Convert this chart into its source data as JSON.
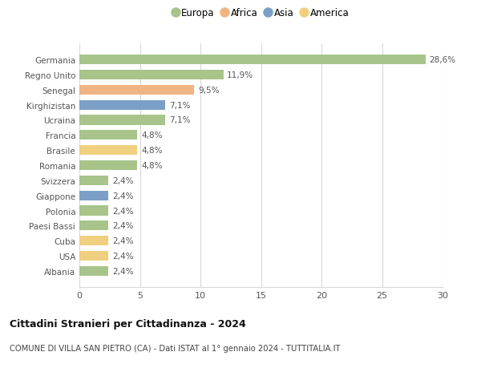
{
  "countries": [
    "Germania",
    "Regno Unito",
    "Senegal",
    "Kirghizistan",
    "Ucraina",
    "Francia",
    "Brasile",
    "Romania",
    "Svizzera",
    "Giappone",
    "Polonia",
    "Paesi Bassi",
    "Cuba",
    "USA",
    "Albania"
  ],
  "values": [
    28.6,
    11.9,
    9.5,
    7.1,
    7.1,
    4.8,
    4.8,
    4.8,
    2.4,
    2.4,
    2.4,
    2.4,
    2.4,
    2.4,
    2.4
  ],
  "labels": [
    "28,6%",
    "11,9%",
    "9,5%",
    "7,1%",
    "7,1%",
    "4,8%",
    "4,8%",
    "4,8%",
    "2,4%",
    "2,4%",
    "2,4%",
    "2,4%",
    "2,4%",
    "2,4%",
    "2,4%"
  ],
  "colors": [
    "#a8c48a",
    "#a8c48a",
    "#f0b483",
    "#7b9fc7",
    "#a8c48a",
    "#a8c48a",
    "#f0d080",
    "#a8c48a",
    "#a8c48a",
    "#7b9fc7",
    "#a8c48a",
    "#a8c48a",
    "#f0d080",
    "#f0d080",
    "#a8c48a"
  ],
  "legend_labels": [
    "Europa",
    "Africa",
    "Asia",
    "America"
  ],
  "legend_colors": [
    "#a8c48a",
    "#f0b483",
    "#7b9fc7",
    "#f0d080"
  ],
  "title": "Cittadini Stranieri per Cittadinanza - 2024",
  "subtitle": "COMUNE DI VILLA SAN PIETRO (CA) - Dati ISTAT al 1° gennaio 2024 - TUTTITALIA.IT",
  "xlim": [
    0,
    30
  ],
  "xticks": [
    0,
    5,
    10,
    15,
    20,
    25,
    30
  ],
  "background_color": "#ffffff",
  "grid_color": "#d8d8d8"
}
